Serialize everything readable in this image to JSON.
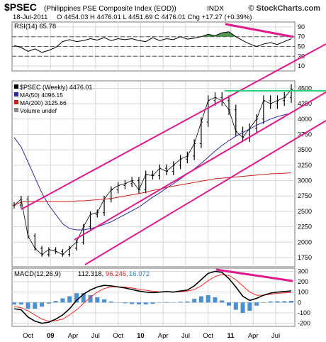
{
  "header": {
    "symbol": "$PSEC",
    "name": "(Philippines PSE Composite Index (EOD))",
    "exchange": "INDX",
    "brand": "© StockCharts.com",
    "date": "18-Jul-2011",
    "quote": "O 4454.03  H 4476.01  L 4451.69  C 4476.01  Chg +17.27 (+0.39%)"
  },
  "colors": {
    "price": "#000000",
    "ma50": "#2a2a9a",
    "ma200": "#c81e1e",
    "channel": "#e0198c",
    "resistance": "#33cc7a",
    "rsi_fill": "#3d8a3d",
    "macd_hist": "#4a8fd0",
    "signal": "#ff2a2a",
    "grid": "#d6d6d6"
  },
  "chart_data": [
    {
      "type": "line",
      "title": "RSI(14) 65.78",
      "y_ticks": [
        10,
        30,
        50,
        70,
        90
      ],
      "reference_lines": [
        70,
        50,
        30
      ],
      "ylim": [
        0,
        100
      ],
      "x_weeks": [
        0,
        4,
        8,
        12,
        16,
        20,
        24,
        28,
        32,
        36,
        40,
        44,
        48,
        52,
        56,
        60,
        64,
        68,
        72,
        76,
        80,
        84,
        88,
        92,
        96,
        100,
        104,
        108,
        112,
        116,
        120,
        124,
        128,
        132,
        136,
        140,
        144,
        148,
        152,
        156,
        160
      ],
      "values": [
        52,
        48,
        40,
        45,
        38,
        42,
        48,
        60,
        64,
        60,
        62,
        66,
        63,
        68,
        62,
        66,
        64,
        66,
        62,
        60,
        68,
        62,
        66,
        64,
        70,
        65,
        67,
        70,
        75,
        72,
        78,
        80,
        70,
        62,
        55,
        50,
        55,
        58,
        54,
        60,
        65.78
      ],
      "annotation": "bearish divergence trendline (pink)"
    },
    {
      "type": "line",
      "title": "$PSEC (Weekly) 4476.01",
      "legend": [
        {
          "label": "$PSEC (Weekly) 4476.01",
          "color": "#000000"
        },
        {
          "label": "MA(50) 4096.15",
          "color": "#2a2a9a"
        },
        {
          "label": "MA(200) 3125.66",
          "color": "#c81e1e"
        },
        {
          "label": "Volume undef",
          "color": "#888888"
        }
      ],
      "x_ticks": [
        "Oct",
        "09",
        "Apr",
        "Jul",
        "Oct",
        "10",
        "Apr",
        "Jul",
        "Oct",
        "11",
        "Apr",
        "Jul"
      ],
      "y_ticks": [
        1750,
        2000,
        2250,
        2500,
        2750,
        3000,
        3250,
        3500,
        3750,
        4000,
        4250,
        4500
      ],
      "ylim": [
        1600,
        4620
      ],
      "x_weeks": [
        0,
        4,
        8,
        12,
        16,
        20,
        24,
        28,
        32,
        36,
        40,
        44,
        48,
        52,
        56,
        60,
        64,
        68,
        72,
        76,
        80,
        84,
        88,
        92,
        96,
        100,
        104,
        108,
        112,
        116,
        120,
        124,
        128,
        132,
        136,
        140,
        144,
        148,
        152,
        156,
        160
      ],
      "series": [
        {
          "values": [
            2600,
            2700,
            2100,
            1900,
            1800,
            1880,
            1850,
            1800,
            1900,
            2000,
            2250,
            2450,
            2480,
            2700,
            2850,
            2920,
            2950,
            3000,
            2850,
            3100,
            3080,
            3200,
            3150,
            3250,
            3350,
            3400,
            3600,
            3950,
            4300,
            4350,
            4300,
            4150,
            3800,
            3700,
            3850,
            4000,
            4300,
            4250,
            4300,
            4350,
            4476
          ]
        },
        {
          "name": "MA(50)",
          "values": [
            3700,
            3550,
            3300,
            3050,
            2800,
            2600,
            2450,
            2300,
            2220,
            2200,
            2200,
            2220,
            2250,
            2290,
            2330,
            2390,
            2450,
            2510,
            2570,
            2650,
            2730,
            2800,
            2880,
            2950,
            3030,
            3110,
            3190,
            3280,
            3380,
            3480,
            3570,
            3650,
            3720,
            3780,
            3840,
            3900,
            3950,
            4000,
            4040,
            4070,
            4096
          ]
        },
        {
          "name": "MA(200)",
          "values": [
            2600,
            2650,
            2660,
            2660,
            2660,
            2660,
            2660,
            2660,
            2660,
            2670,
            2670,
            2680,
            2690,
            2700,
            2710,
            2730,
            2750,
            2770,
            2790,
            2810,
            2840,
            2860,
            2890,
            2910,
            2930,
            2950,
            2970,
            2990,
            3010,
            3030,
            3040,
            3050,
            3060,
            3070,
            3080,
            3090,
            3100,
            3110,
            3115,
            3120,
            3126
          ]
        }
      ]
    },
    {
      "type": "bar",
      "title": "MACD(12,26,9) 112.318, 96.246, 16.072",
      "y_ticks": [
        -200,
        -100,
        0,
        100,
        200,
        300
      ],
      "ylim": [
        -230,
        330
      ],
      "x_weeks": [
        0,
        4,
        8,
        12,
        16,
        20,
        24,
        28,
        32,
        36,
        40,
        44,
        48,
        52,
        56,
        60,
        64,
        68,
        72,
        76,
        80,
        84,
        88,
        92,
        96,
        100,
        104,
        108,
        112,
        116,
        120,
        124,
        128,
        132,
        136,
        140,
        144,
        148,
        152,
        156,
        160
      ],
      "series": [
        {
          "name": "MACD",
          "values": [
            -60,
            -70,
            -140,
            -180,
            -200,
            -190,
            -160,
            -120,
            -60,
            20,
            80,
            120,
            150,
            165,
            160,
            150,
            140,
            125,
            110,
            100,
            95,
            100,
            105,
            100,
            110,
            120,
            160,
            220,
            280,
            300,
            290,
            230,
            150,
            60,
            20,
            40,
            70,
            90,
            100,
            105,
            112.318
          ]
        },
        {
          "name": "Signal",
          "values": [
            -40,
            -50,
            -80,
            -120,
            -160,
            -180,
            -175,
            -160,
            -120,
            -70,
            -10,
            50,
            100,
            135,
            150,
            152,
            148,
            140,
            128,
            118,
            108,
            102,
            101,
            102,
            104,
            110,
            125,
            160,
            210,
            250,
            270,
            260,
            220,
            160,
            100,
            70,
            70,
            80,
            88,
            93,
            96.246
          ]
        },
        {
          "name": "Histogram",
          "values": [
            -20,
            -20,
            -60,
            -60,
            -40,
            -10,
            15,
            40,
            60,
            90,
            90,
            70,
            50,
            30,
            10,
            -2,
            -8,
            -15,
            -18,
            -18,
            -13,
            -2,
            4,
            -2,
            6,
            10,
            35,
            60,
            70,
            50,
            20,
            -30,
            -70,
            -100,
            -80,
            -30,
            0,
            10,
            12,
            12,
            16.072
          ]
        }
      ],
      "annotation": "declining MACD peaks trendline (pink)"
    }
  ]
}
